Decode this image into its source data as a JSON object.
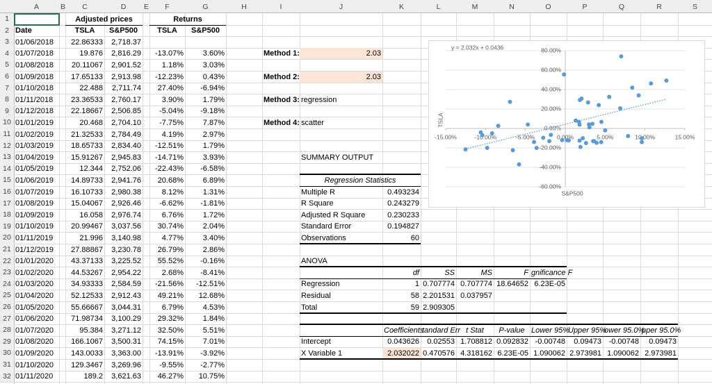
{
  "sheet": {
    "columns": [
      "A",
      "B",
      "C",
      "D",
      "E",
      "F",
      "G",
      "H",
      "I",
      "J",
      "K",
      "L",
      "M",
      "N",
      "O",
      "P",
      "Q",
      "R",
      "S"
    ],
    "rows": [
      1,
      2,
      3,
      4,
      5,
      6,
      7,
      8,
      9,
      10,
      11,
      12,
      13,
      14,
      15,
      16,
      17,
      18,
      19,
      20,
      21,
      22,
      23,
      24,
      25,
      26,
      27,
      28,
      29,
      30,
      31,
      32
    ]
  },
  "prices_table": {
    "group_headers": [
      "Adjusted prices",
      "Returns"
    ],
    "headers": [
      "Date",
      "TSLA",
      "S&P500",
      "TSLA",
      "S&P500"
    ],
    "rows": [
      [
        "01/06/2018",
        "22.86333",
        "2,718.37",
        null,
        null
      ],
      [
        "01/07/2018",
        "19.876",
        "2,816.29",
        "-13.07%",
        "3.60%"
      ],
      [
        "01/08/2018",
        "20.11067",
        "2,901.52",
        "1.18%",
        "3.03%"
      ],
      [
        "01/09/2018",
        "17.65133",
        "2,913.98",
        "-12.23%",
        "0.43%"
      ],
      [
        "01/10/2018",
        "22.488",
        "2,711.74",
        "27.40%",
        "-6.94%"
      ],
      [
        "01/11/2018",
        "23.36533",
        "2,760.17",
        "3.90%",
        "1.79%"
      ],
      [
        "01/12/2018",
        "22.18667",
        "2,506.85",
        "-5.04%",
        "-9.18%"
      ],
      [
        "01/01/2019",
        "20.468",
        "2,704.10",
        "-7.75%",
        "7.87%"
      ],
      [
        "01/02/2019",
        "21.32533",
        "2,784.49",
        "4.19%",
        "2.97%"
      ],
      [
        "01/03/2019",
        "18.65733",
        "2,834.40",
        "-12.51%",
        "1.79%"
      ],
      [
        "01/04/2019",
        "15.91267",
        "2,945.83",
        "-14.71%",
        "3.93%"
      ],
      [
        "01/05/2019",
        "12.344",
        "2,752.06",
        "-22.43%",
        "-6.58%"
      ],
      [
        "01/06/2019",
        "14.89733",
        "2,941.76",
        "20.68%",
        "6.89%"
      ],
      [
        "01/07/2019",
        "16.10733",
        "2,980.38",
        "8.12%",
        "1.31%"
      ],
      [
        "01/08/2019",
        "15.04067",
        "2,926.46",
        "-6.62%",
        "-1.81%"
      ],
      [
        "01/09/2019",
        "16.058",
        "2,976.74",
        "6.76%",
        "1.72%"
      ],
      [
        "01/10/2019",
        "20.99467",
        "3,037.56",
        "30.74%",
        "2.04%"
      ],
      [
        "01/11/2019",
        "21.996",
        "3,140.98",
        "4.77%",
        "3.40%"
      ],
      [
        "01/12/2019",
        "27.88867",
        "3,230.78",
        "26.79%",
        "2.86%"
      ],
      [
        "01/01/2020",
        "43.37133",
        "3,225.52",
        "55.52%",
        "-0.16%"
      ],
      [
        "01/02/2020",
        "44.53267",
        "2,954.22",
        "2.68%",
        "-8.41%"
      ],
      [
        "01/03/2020",
        "34.93333",
        "2,584.59",
        "-21.56%",
        "-12.51%"
      ],
      [
        "01/04/2020",
        "52.12533",
        "2,912.43",
        "49.21%",
        "12.68%"
      ],
      [
        "01/05/2020",
        "55.66667",
        "3,044.31",
        "6.79%",
        "4.53%"
      ],
      [
        "01/06/2020",
        "71.98734",
        "3,100.29",
        "29.32%",
        "1.84%"
      ],
      [
        "01/07/2020",
        "95.384",
        "3,271.12",
        "32.50%",
        "5.51%"
      ],
      [
        "01/08/2020",
        "166.1067",
        "3,500.31",
        "74.15%",
        "7.01%"
      ],
      [
        "01/09/2020",
        "143.0033",
        "3,363.00",
        "-13.91%",
        "-3.92%"
      ],
      [
        "01/10/2020",
        "129.3467",
        "3,269.96",
        "-9.55%",
        "-2.77%"
      ],
      [
        "01/11/2020",
        "189.2",
        "3,621.63",
        "46.27%",
        "10.75%"
      ]
    ]
  },
  "methods": [
    {
      "label": "Method 1:",
      "value": "2.03"
    },
    {
      "label": "Method 2:",
      "value": "2.03"
    },
    {
      "label": "Method 3:",
      "value": "regression"
    },
    {
      "label": "Method 4:",
      "value": "scatter"
    }
  ],
  "summary": {
    "title": "SUMMARY OUTPUT",
    "regression_statistics": {
      "title": "Regression Statistics",
      "rows": [
        [
          "Multiple R",
          "0.493234"
        ],
        [
          "R Square",
          "0.243279"
        ],
        [
          "Adjusted R Square",
          "0.230233"
        ],
        [
          "Standard Error",
          "0.194827"
        ],
        [
          "Observations",
          "60"
        ]
      ]
    },
    "anova": {
      "title": "ANOVA",
      "headers": [
        "df",
        "SS",
        "MS",
        "F",
        "gnificance F"
      ],
      "rows": [
        [
          "Regression",
          "1",
          "0.707774",
          "0.707774",
          "18.64652",
          "6.23E-05"
        ],
        [
          "Residual",
          "58",
          "2.201531",
          "0.037957",
          null,
          null
        ],
        [
          "Total",
          "59",
          "2.909305",
          null,
          null,
          null
        ]
      ]
    },
    "coefficients": {
      "headers": [
        "Coefficients",
        "tandard Err",
        "t Stat",
        "P-value",
        "Lower 95%",
        "Upper 95%",
        "ower 95.0%",
        "pper 95.0%"
      ],
      "rows": [
        [
          "Intercept",
          "0.043626",
          "0.02553",
          "1.708812",
          "0.092832",
          "-0.00748",
          "0.09473",
          "-0.00748",
          "0.09473"
        ],
        [
          "X Variable 1",
          "2.032022",
          "0.470576",
          "4.318162",
          "6.23E-05",
          "1.090062",
          "2.973981",
          "1.090062",
          "2.973981"
        ]
      ]
    }
  },
  "chart_data": {
    "type": "scatter",
    "x_label": "S&P500",
    "y_label": "TSLA",
    "color": "#5b9bd5",
    "grid": true,
    "x": [
      3.6,
      3.03,
      0.43,
      -6.94,
      1.79,
      -9.18,
      7.87,
      2.97,
      1.79,
      3.93,
      -6.58,
      6.89,
      1.31,
      -1.81,
      1.72,
      2.04,
      3.4,
      2.86,
      -0.16,
      -8.41,
      -12.51,
      12.68,
      4.53,
      1.84,
      5.51,
      7.01,
      -3.92,
      -2.77,
      10.75,
      -10.6,
      -10.4,
      -9.8,
      -4.7,
      -5.8,
      -3.6,
      -0.4,
      0.2,
      1.9,
      2.6,
      3.5,
      4.5,
      9.6,
      9.6,
      9.2,
      8.4,
      4.2,
      2.2,
      -2.0,
      5.0
    ],
    "y": [
      -13.07,
      1.18,
      -12.23,
      27.4,
      3.9,
      -5.04,
      -7.75,
      4.19,
      -12.51,
      -14.71,
      -22.43,
      20.68,
      8.12,
      -6.62,
      6.76,
      30.74,
      4.77,
      26.79,
      55.52,
      2.68,
      -21.56,
      49.21,
      6.79,
      29.32,
      32.5,
      74.15,
      -13.91,
      -9.55,
      46.27,
      -4,
      -7,
      -20,
      4,
      -37,
      -20,
      -12,
      -12,
      -19,
      -15,
      -13,
      -14,
      -10,
      -14,
      34,
      42,
      24,
      -10,
      -13,
      -2
    ],
    "xlim": [
      -15,
      15
    ],
    "ylim": [
      -60,
      80
    ],
    "xticks": [
      {
        "value": -15,
        "label": "-15.00%"
      },
      {
        "value": -10,
        "label": "-10.00%"
      },
      {
        "value": -5,
        "label": "-5.00%"
      },
      {
        "value": 0,
        "label": "0.00%"
      },
      {
        "value": 5,
        "label": "5.00%"
      },
      {
        "value": 10,
        "label": "10.00%"
      },
      {
        "value": 15,
        "label": "15.00%"
      }
    ],
    "yticks": [
      {
        "value": -60,
        "label": "-60.00%"
      },
      {
        "value": -40,
        "label": "-40.00%"
      },
      {
        "value": -20,
        "label": "-20.00%"
      },
      {
        "value": 0,
        "label": "0.00%"
      },
      {
        "value": 20,
        "label": "20.00%"
      },
      {
        "value": 40,
        "label": "40.00%"
      },
      {
        "value": 60,
        "label": "60.00%"
      },
      {
        "value": 80,
        "label": "80.00%"
      }
    ],
    "trendline": {
      "label": "y = 2.032x + 0.0436",
      "slope": 2.032,
      "intercept": 4.36
    }
  }
}
